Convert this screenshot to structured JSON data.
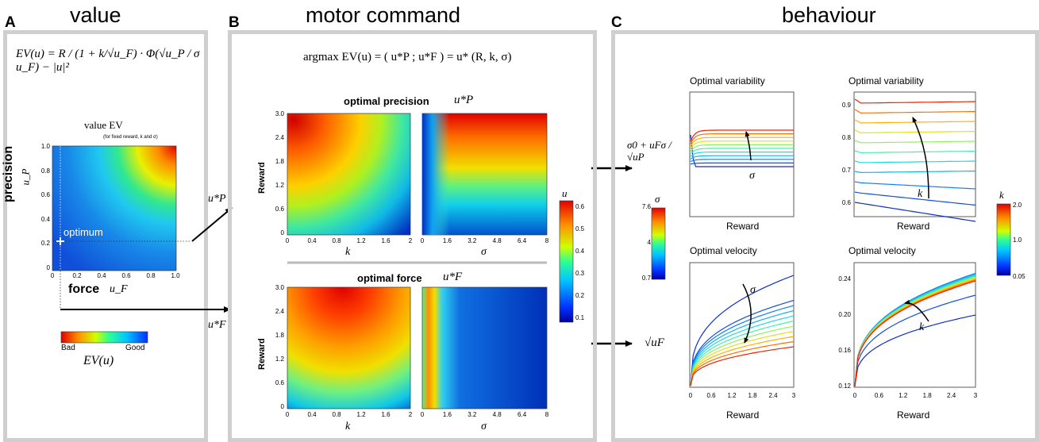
{
  "panels": {
    "a": {
      "letter": "A",
      "title": "value"
    },
    "b": {
      "letter": "B",
      "title": "motor command"
    },
    "c": {
      "letter": "C",
      "title": "behaviour"
    }
  },
  "panel_a": {
    "equation": "EV(u) = R / (1 + k/√u_F) · Φ(√u_P / σ u_F) − |u|²",
    "map_title": "value  EV",
    "map_subtitle": "(for fixed reward,  k  and  σ)",
    "ylabel": "precision",
    "ylabel_var": "u_P",
    "xlabel": "force",
    "xlabel_var": "u_F",
    "optimum_label": "optimum",
    "y_ticks": [
      "1.0",
      "0.8",
      "0.6",
      "0.4",
      "0.2",
      "0"
    ],
    "x_ticks": [
      "0",
      "0.2",
      "0.4",
      "0.6",
      "0.8",
      "1.0"
    ],
    "colorbar_left": "Bad",
    "colorbar_right": "Good",
    "colorbar_label": "EV(u)",
    "out_up": "u*P",
    "out_uf": "u*F"
  },
  "panel_b": {
    "equation": "argmax EV(u) = ( u*P ; u*F ) = u* (R, k, σ)",
    "top_title": "optimal precision",
    "top_var": "u*P",
    "bottom_title": "optimal force",
    "bottom_var": "u*F",
    "ylabel": "Reward",
    "y_ticks": [
      "3.0",
      "2.4",
      "1.8",
      "1.2",
      "0.6",
      "0"
    ],
    "k_ticks": [
      "0",
      "0.4",
      "0.8",
      "1.2",
      "1.6",
      "2"
    ],
    "sigma_ticks": [
      "0",
      "1.6",
      "3.2",
      "4.8",
      "6.4",
      "8"
    ],
    "xlabel_k": "k",
    "xlabel_sigma": "σ",
    "colorbar_label": "u",
    "colorbar_ticks": [
      "0.6",
      "0.5",
      "0.4",
      "0.3",
      "0.2",
      "0.1"
    ]
  },
  "panel_c": {
    "var_label": "σ0 + uFσ / √uP",
    "force_label": "√uF",
    "sigma_cb_label": "σ",
    "sigma_cb_ticks": [
      "7.6",
      "4",
      "0.7"
    ],
    "k_cb_label": "k",
    "k_cb_ticks": [
      "2.0",
      "1.0",
      "0.05"
    ],
    "plots": [
      {
        "title": "Optimal variability",
        "xlabel": "Reward",
        "arrow_label": "σ"
      },
      {
        "title": "Optimal variability",
        "xlabel": "Reward",
        "arrow_label": "k",
        "y_ticks": [
          "0.9",
          "0.8",
          "0.7",
          "0.6"
        ]
      },
      {
        "title": "Optimal velocity",
        "xlabel": "Reward",
        "arrow_label": "σ",
        "x_ticks": [
          "0",
          "0.6",
          "1.2",
          "1.8",
          "2.4",
          "3"
        ]
      },
      {
        "title": "Optimal velocity",
        "xlabel": "Reward",
        "arrow_label": "k",
        "y_ticks": [
          "0.24",
          "0.20",
          "0.16",
          "0.12"
        ],
        "x_ticks": [
          "0",
          "0.6",
          "1.2",
          "1.8",
          "2.4",
          "3"
        ]
      }
    ]
  }
}
